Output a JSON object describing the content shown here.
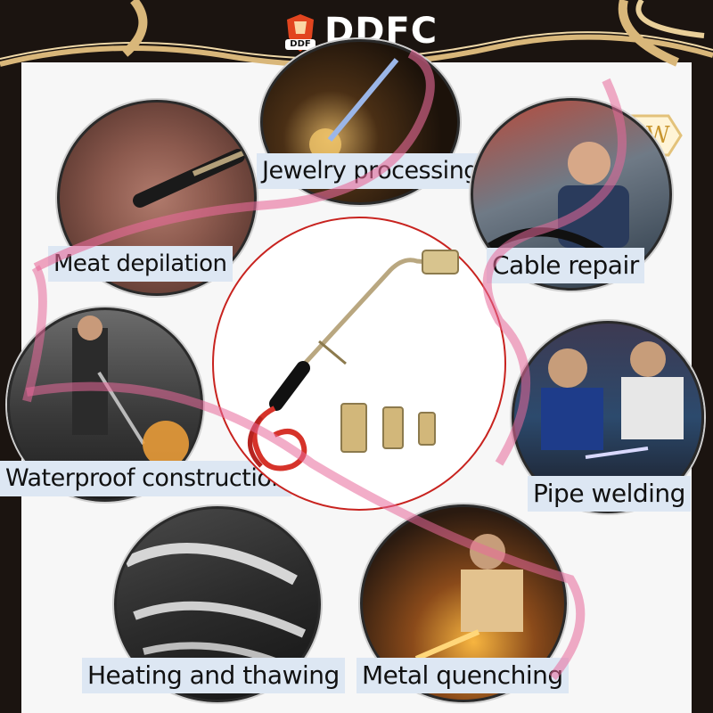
{
  "brand": {
    "name": "DDFC",
    "logo_text": "DDF"
  },
  "badge": {
    "text": "NEW"
  },
  "applications": {
    "jewelry": "Jewelry processing",
    "meat": "Meat depilation",
    "cable": "Cable repair",
    "waterproof": "Waterproof construction",
    "pipe": "Pipe welding",
    "heating": "Heating and thawing",
    "quenching": "Metal quenching"
  },
  "colors": {
    "ring": "#c8231f",
    "label_bg": "#dde7f3",
    "ribbon": "#e86a9a",
    "gold": "#d9b77a",
    "frame": "#1b1410"
  }
}
